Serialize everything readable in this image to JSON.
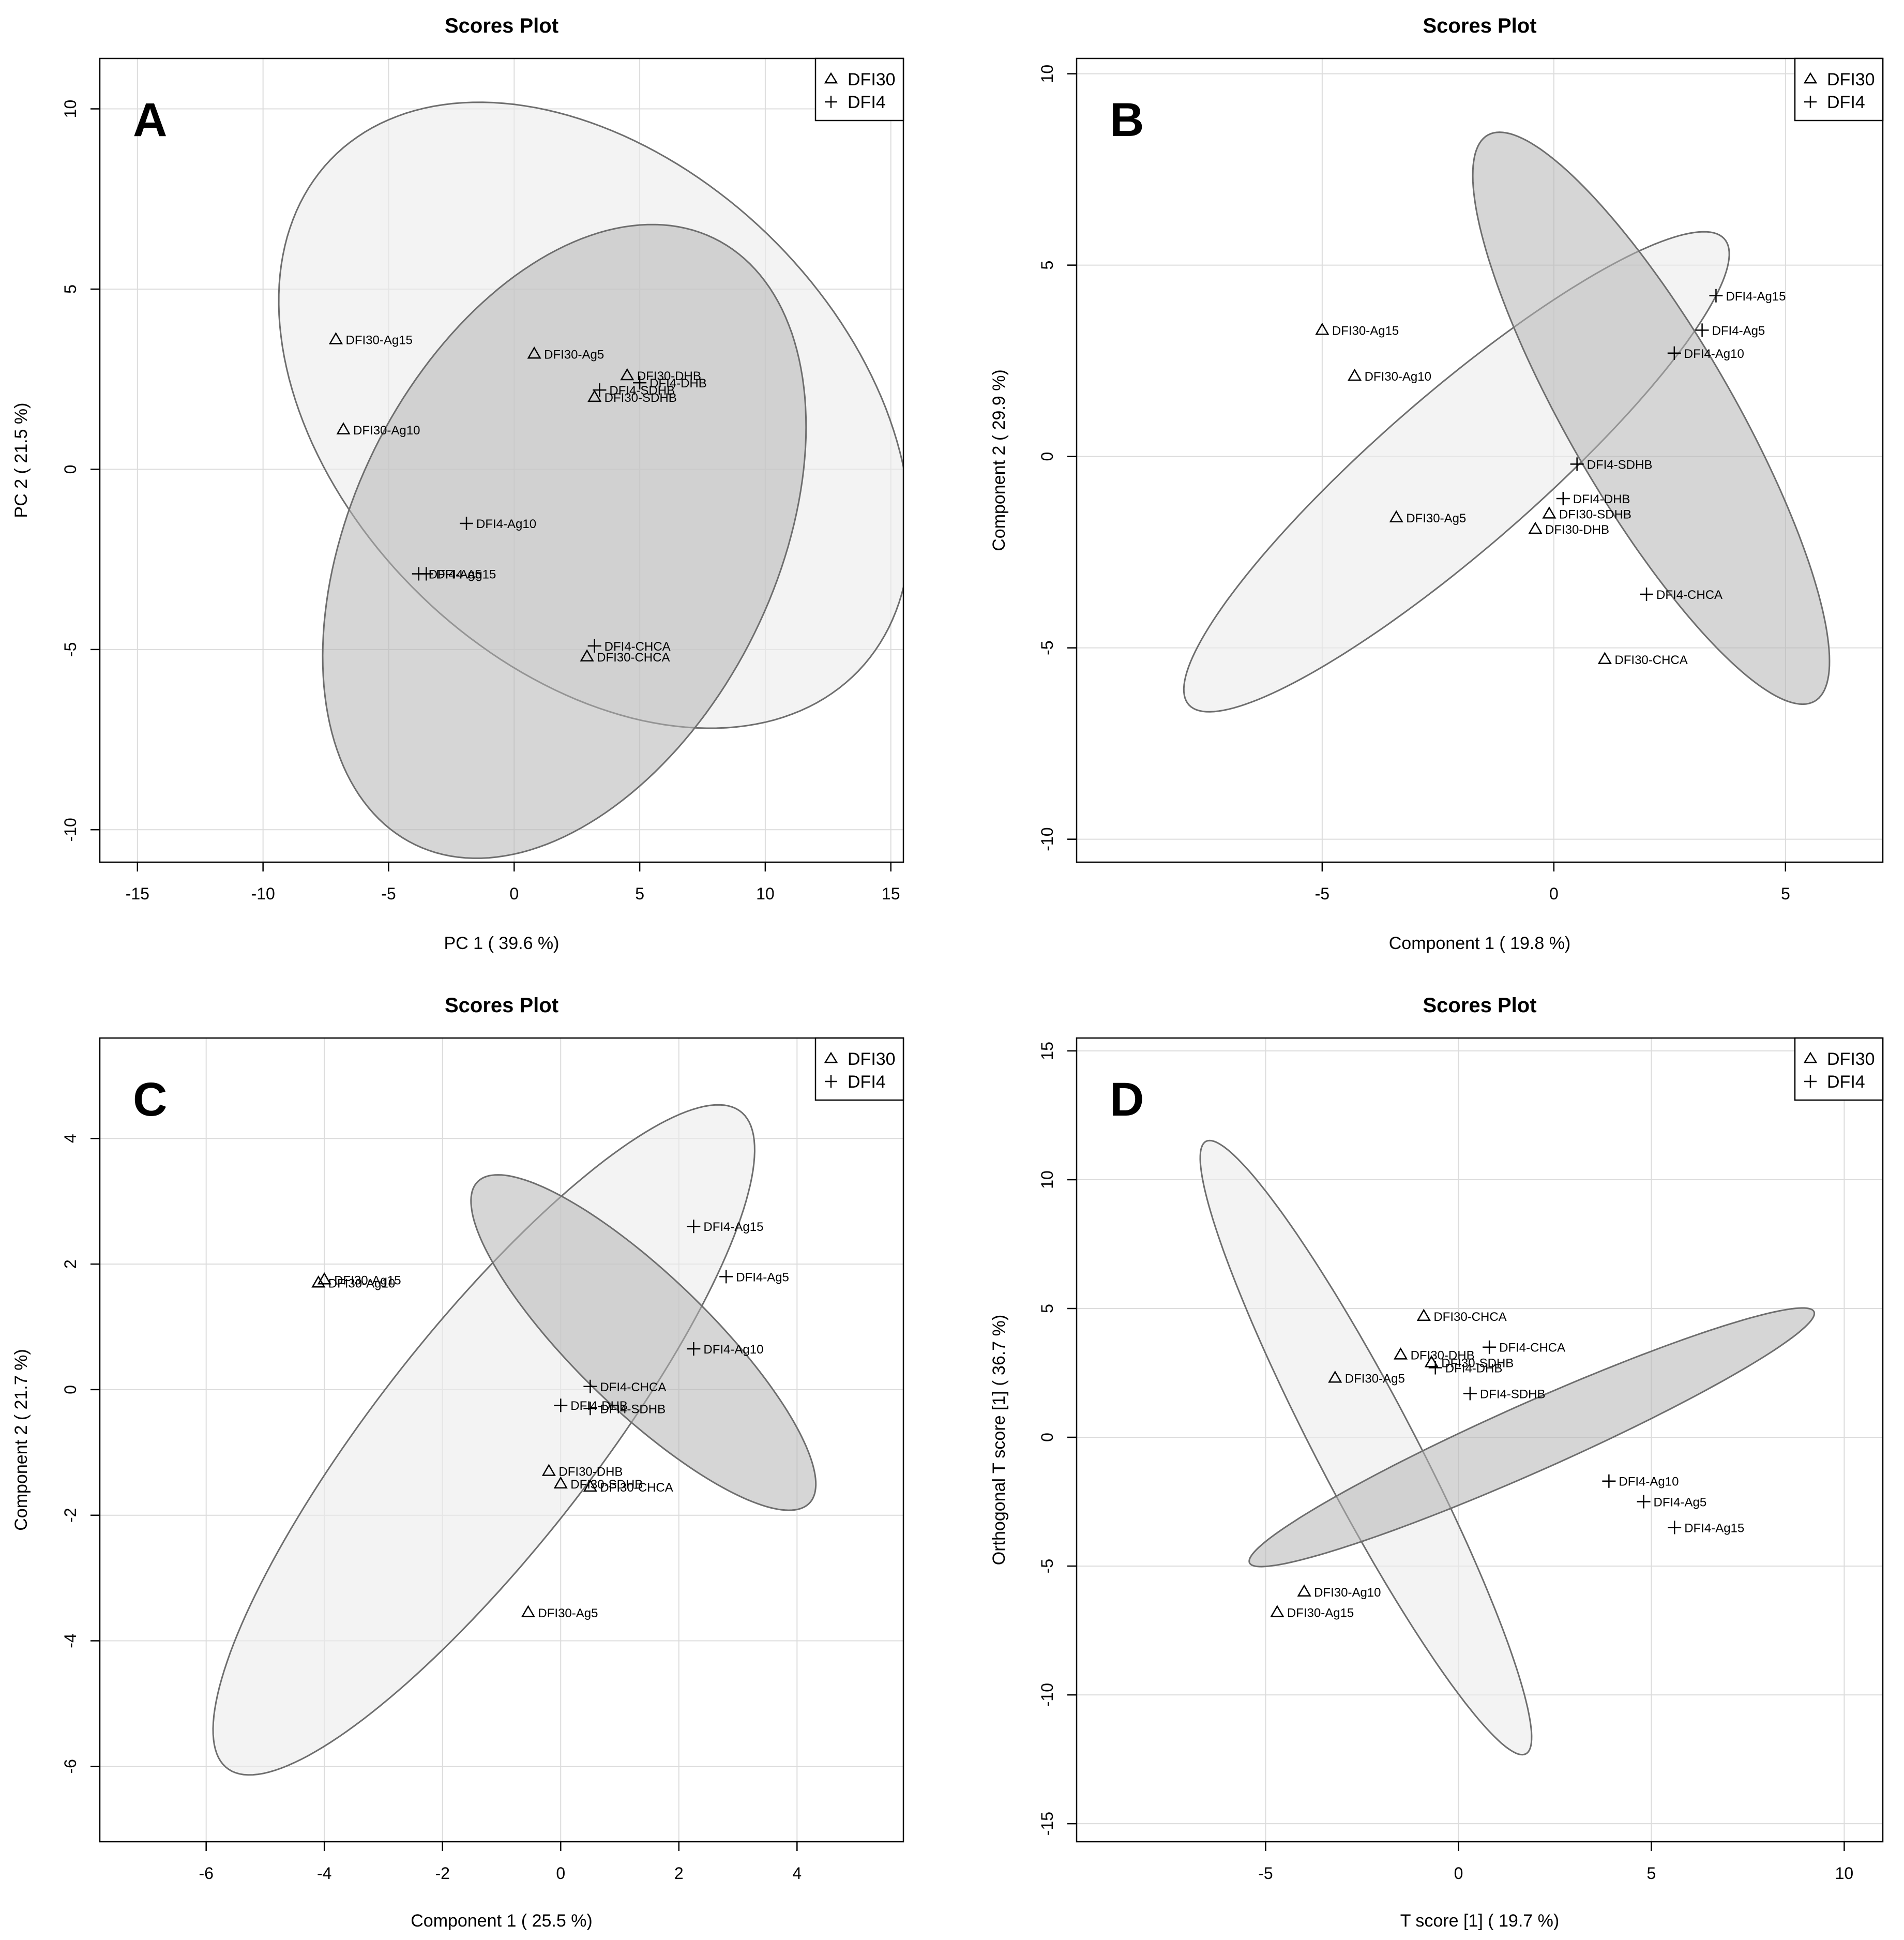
{
  "chart_data": [
    {
      "type": "scatter",
      "panel": "A",
      "title": "Scores Plot",
      "xlabel": "PC 1 ( 39.6 %)",
      "ylabel": "PC 2 ( 21.5 %)",
      "xlim": [
        -16.5,
        15.5
      ],
      "ylim": [
        -10.9,
        11.4
      ],
      "xticks": [
        -15,
        -10,
        -5,
        0,
        5,
        10,
        15
      ],
      "yticks": [
        -10,
        -5,
        0,
        5,
        10
      ],
      "legend": {
        "position": "top-right",
        "entries": [
          {
            "name": "DFI30",
            "marker": "triangle"
          },
          {
            "name": "DFI4",
            "marker": "plus"
          }
        ]
      },
      "series": [
        {
          "name": "DFI30",
          "marker": "triangle",
          "points": [
            {
              "label": "DFI30-Ag15",
              "x": -7.1,
              "y": 3.6
            },
            {
              "label": "DFI30-Ag10",
              "x": -6.8,
              "y": 1.1
            },
            {
              "label": "DFI30-Ag5",
              "x": 0.8,
              "y": 3.2
            },
            {
              "label": "DFI30-DHB",
              "x": 4.5,
              "y": 2.6
            },
            {
              "label": "DFI30-SDHB",
              "x": 3.2,
              "y": 2.0
            },
            {
              "label": "DFI30-CHCA",
              "x": 2.9,
              "y": -5.2
            }
          ]
        },
        {
          "name": "DFI4",
          "marker": "plus",
          "points": [
            {
              "label": "DFI4-DHB",
              "x": 5.0,
              "y": 2.4
            },
            {
              "label": "DFI4-SDHB",
              "x": 3.4,
              "y": 2.2
            },
            {
              "label": "DFI4-Ag10",
              "x": -1.9,
              "y": -1.5
            },
            {
              "label": "DFI4-Ag15",
              "x": -3.5,
              "y": -2.9
            },
            {
              "label": "DFI4-Ag5",
              "x": -3.8,
              "y": -2.9
            },
            {
              "label": "DFI4-CHCA",
              "x": 3.2,
              "y": -4.9
            }
          ]
        }
      ],
      "ellipses": [
        {
          "group": "DFI30",
          "shade": "light",
          "cx": 3.2,
          "cy": 1.5,
          "ax": 13.2,
          "bx": 7.7,
          "angle_deg": -22
        },
        {
          "group": "DFI4",
          "shade": "dark",
          "cx": 2.0,
          "cy": -2.0,
          "ax": 10.8,
          "bx": 7.3,
          "angle_deg": 38
        }
      ]
    },
    {
      "type": "scatter",
      "panel": "B",
      "title": "Scores Plot",
      "xlabel": "Component 1 ( 19.8 %)",
      "ylabel": "Component 2 ( 29.9 %)",
      "xlim": [
        -10.3,
        7.1
      ],
      "ylim": [
        -10.6,
        10.4
      ],
      "xticks": [
        -5,
        0,
        5
      ],
      "yticks": [
        -10,
        -5,
        0,
        5,
        10
      ],
      "legend": {
        "position": "top-right",
        "entries": [
          {
            "name": "DFI30",
            "marker": "triangle"
          },
          {
            "name": "DFI4",
            "marker": "plus"
          }
        ]
      },
      "series": [
        {
          "name": "DFI30",
          "marker": "triangle",
          "points": [
            {
              "label": "DFI30-Ag15",
              "x": -5.0,
              "y": 3.3
            },
            {
              "label": "DFI30-Ag10",
              "x": -4.3,
              "y": 2.1
            },
            {
              "label": "DFI30-Ag5",
              "x": -3.4,
              "y": -1.6
            },
            {
              "label": "DFI30-SDHB",
              "x": -0.1,
              "y": -1.5
            },
            {
              "label": "DFI30-DHB",
              "x": -0.4,
              "y": -1.9
            },
            {
              "label": "DFI30-CHCA",
              "x": 1.1,
              "y": -5.3
            }
          ]
        },
        {
          "name": "DFI4",
          "marker": "plus",
          "points": [
            {
              "label": "DFI4-Ag15",
              "x": 3.5,
              "y": 4.2
            },
            {
              "label": "DFI4-Ag5",
              "x": 3.2,
              "y": 3.3
            },
            {
              "label": "DFI4-Ag10",
              "x": 2.6,
              "y": 2.7
            },
            {
              "label": "DFI4-SDHB",
              "x": 0.5,
              "y": -0.2
            },
            {
              "label": "DFI4-DHB",
              "x": 0.2,
              "y": -1.1
            },
            {
              "label": "DFI4-CHCA",
              "x": 2.0,
              "y": -3.6
            }
          ]
        }
      ],
      "ellipses": [
        {
          "group": "DFI30",
          "shade": "light",
          "cx": -2.1,
          "cy": -0.4,
          "ax": 8.4,
          "bx": 1.85,
          "angle_deg": 47
        },
        {
          "group": "DFI4",
          "shade": "dark",
          "cx": 2.1,
          "cy": 1.0,
          "ax": 8.2,
          "bx": 1.85,
          "angle_deg": -65
        }
      ]
    },
    {
      "type": "scatter",
      "panel": "C",
      "title": "Scores Plot",
      "xlabel": "Component 1 ( 25.5 %)",
      "ylabel": "Component 2 ( 21.7 %)",
      "xlim": [
        -7.8,
        5.8
      ],
      "ylim": [
        -7.2,
        5.6
      ],
      "xticks": [
        -6,
        -4,
        -2,
        0,
        2,
        4
      ],
      "yticks": [
        -6,
        -4,
        -2,
        0,
        2,
        4
      ],
      "legend": {
        "position": "top-right",
        "entries": [
          {
            "name": "DFI30",
            "marker": "triangle"
          },
          {
            "name": "DFI4",
            "marker": "plus"
          }
        ]
      },
      "series": [
        {
          "name": "DFI30",
          "marker": "triangle",
          "points": [
            {
              "label": "DFI30-Ag15",
              "x": -4.0,
              "y": 1.75
            },
            {
              "label": "DFI30-Ag10",
              "x": -4.1,
              "y": 1.7
            },
            {
              "label": "DFI30-DHB",
              "x": -0.2,
              "y": -1.3
            },
            {
              "label": "DFI30-SDHB",
              "x": 0.0,
              "y": -1.5
            },
            {
              "label": "DFI30-CHCA",
              "x": 0.5,
              "y": -1.55
            },
            {
              "label": "DFI30-Ag5",
              "x": -0.55,
              "y": -3.55
            }
          ]
        },
        {
          "name": "DFI4",
          "marker": "plus",
          "points": [
            {
              "label": "DFI4-Ag15",
              "x": 2.25,
              "y": 2.6
            },
            {
              "label": "DFI4-Ag5",
              "x": 2.8,
              "y": 1.8
            },
            {
              "label": "DFI4-Ag10",
              "x": 2.25,
              "y": 0.65
            },
            {
              "label": "DFI4-CHCA",
              "x": 0.5,
              "y": 0.05
            },
            {
              "label": "DFI4-DHB",
              "x": 0.0,
              "y": -0.25
            },
            {
              "label": "DFI4-SDHB",
              "x": 0.5,
              "y": -0.3
            }
          ]
        }
      ],
      "ellipses": [
        {
          "group": "DFI30",
          "shade": "light",
          "cx": -1.3,
          "cy": -0.8,
          "ax": 6.8,
          "bx": 1.8,
          "angle_deg": 50
        },
        {
          "group": "DFI4",
          "shade": "dark",
          "cx": 1.4,
          "cy": 0.75,
          "ax": 3.8,
          "bx": 1.1,
          "angle_deg": -42
        }
      ]
    },
    {
      "type": "scatter",
      "panel": "D",
      "title": "Scores Plot",
      "xlabel": "T score [1] ( 19.7 %)",
      "ylabel": "Orthogonal T score [1] ( 36.7 %)",
      "xlim": [
        -9.9,
        11.0
      ],
      "ylim": [
        -15.7,
        15.5
      ],
      "xticks": [
        -5,
        0,
        5,
        10
      ],
      "yticks": [
        -15,
        -10,
        -5,
        0,
        5,
        10,
        15
      ],
      "legend": {
        "position": "top-right",
        "entries": [
          {
            "name": "DFI30",
            "marker": "triangle"
          },
          {
            "name": "DFI4",
            "marker": "plus"
          }
        ]
      },
      "series": [
        {
          "name": "DFI30",
          "marker": "triangle",
          "points": [
            {
              "label": "DFI30-CHCA",
              "x": -0.9,
              "y": 4.7
            },
            {
              "label": "DFI30-DHB",
              "x": -1.5,
              "y": 3.2
            },
            {
              "label": "DFI30-SDHB",
              "x": -0.7,
              "y": 2.9
            },
            {
              "label": "DFI30-Ag5",
              "x": -3.2,
              "y": 2.3
            },
            {
              "label": "DFI30-Ag10",
              "x": -4.0,
              "y": -6.0
            },
            {
              "label": "DFI30-Ag15",
              "x": -4.7,
              "y": -6.8
            }
          ]
        },
        {
          "name": "DFI4",
          "marker": "plus",
          "points": [
            {
              "label": "DFI4-CHCA",
              "x": 0.8,
              "y": 3.5
            },
            {
              "label": "DFI4-DHB",
              "x": -0.6,
              "y": 2.7
            },
            {
              "label": "DFI4-SDHB",
              "x": 0.3,
              "y": 1.7
            },
            {
              "label": "DFI4-Ag10",
              "x": 3.9,
              "y": -1.7
            },
            {
              "label": "DFI4-Ag5",
              "x": 4.8,
              "y": -2.5
            },
            {
              "label": "DFI4-Ag15",
              "x": 5.6,
              "y": -3.5
            }
          ]
        }
      ],
      "ellipses": [
        {
          "group": "DFI30",
          "shade": "light",
          "cx": -2.4,
          "cy": -0.4,
          "ax": 12.6,
          "bx": 1.35,
          "angle_deg": -71
        },
        {
          "group": "DFI4",
          "shade": "dark",
          "cx": 1.9,
          "cy": 0.0,
          "ax": 8.8,
          "bx": 1.2,
          "angle_deg": 34
        }
      ]
    }
  ],
  "colors": {
    "light_fill": "#ebebeb",
    "dark_fill": "#b5b5b5",
    "ellipse_stroke": "#6e6e6e",
    "grid": "#dcdcdc"
  }
}
